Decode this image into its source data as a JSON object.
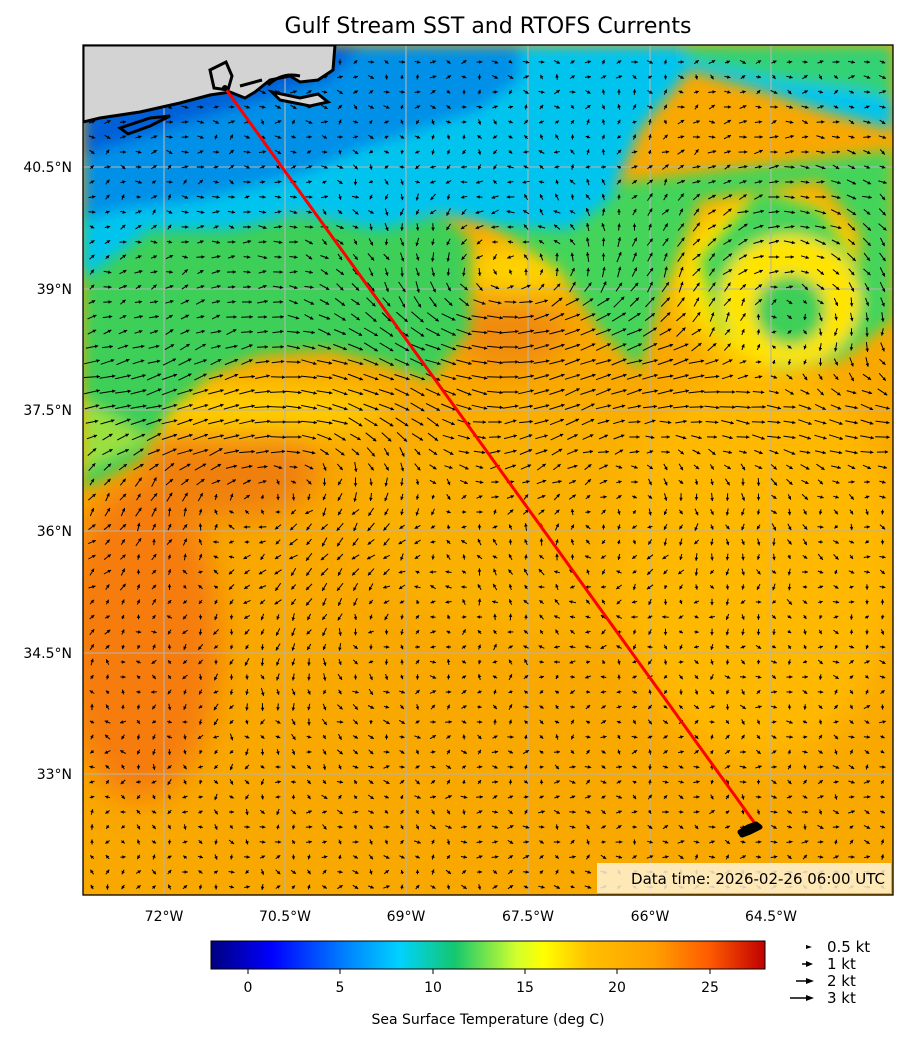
{
  "title": "Gulf Stream SST and RTOFS Currents",
  "map": {
    "lon_range": [
      -72.8,
      -64.5
    ],
    "lat_range": [
      31.8,
      40.9
    ],
    "lon_ticks": [
      "72°W",
      "70.5°W",
      "69°W",
      "67.5°W",
      "66°W",
      "64.5°W"
    ],
    "lat_ticks": [
      "40.5°N",
      "39°N",
      "37.5°N",
      "36°N",
      "34.5°N",
      "33°N"
    ],
    "grid": true,
    "land_color": "#d3d3d3",
    "track_color": "#ff0000",
    "track": {
      "start": {
        "lon": -71.1,
        "lat": 41.1
      },
      "end": {
        "lon": -64.7,
        "lat": 32.4
      }
    },
    "current_arrows": "black quiver arrows (RTOFS surface currents)"
  },
  "data_time_label": "Data time: 2026-02-26 06:00 UTC",
  "colorbar": {
    "label": "Sea Surface Temperature (deg C)",
    "range": [
      -2,
      28
    ],
    "ticks": [
      "0",
      "5",
      "10",
      "15",
      "20",
      "25"
    ],
    "colormap": "jet"
  },
  "arrow_legend": [
    {
      "label": "0.5 kt",
      "speed_kt": 0.5
    },
    {
      "label": "1 kt",
      "speed_kt": 1
    },
    {
      "label": "2 kt",
      "speed_kt": 2
    },
    {
      "label": "3 kt",
      "speed_kt": 3
    }
  ],
  "colors": {
    "sst_warm": "#f7a100",
    "sst_yellow": "#ffd21a",
    "sst_green": "#3fd35a",
    "sst_cyan": "#00c8ee",
    "sst_blue": "#0078e0",
    "frame": "#000000"
  }
}
